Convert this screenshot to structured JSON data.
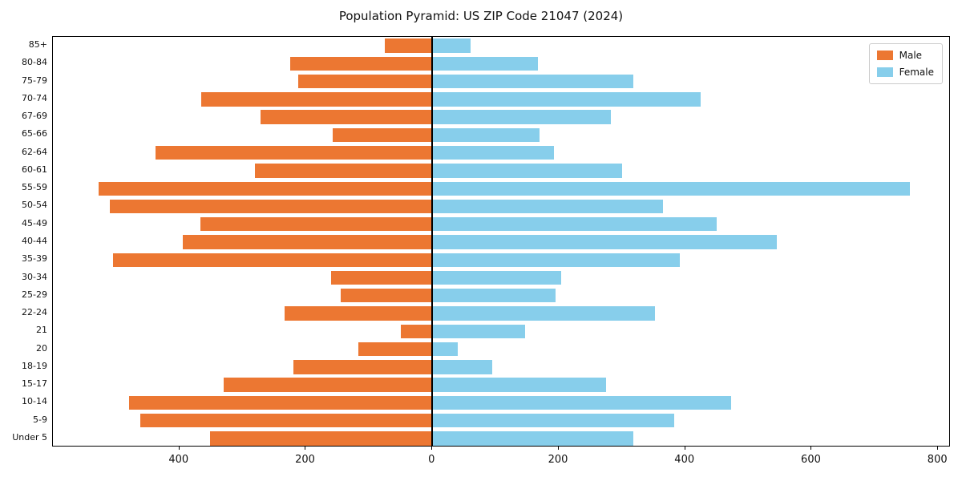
{
  "title": "Population Pyramid: US ZIP Code 21047 (2024)",
  "legend": {
    "male_label": "Male",
    "female_label": "Female"
  },
  "colors": {
    "male": "#ec7732",
    "female": "#87ceeb",
    "axis": "#000000",
    "background": "#ffffff"
  },
  "chart_data": {
    "type": "bar",
    "subtype": "population-pyramid",
    "orientation": "horizontal",
    "title": "Population Pyramid: US ZIP Code 21047 (2024)",
    "xlabel": "",
    "ylabel": "",
    "categories": [
      "85+",
      "80-84",
      "75-79",
      "70-74",
      "67-69",
      "65-66",
      "62-64",
      "60-61",
      "55-59",
      "50-54",
      "45-49",
      "40-44",
      "35-39",
      "30-34",
      "25-29",
      "22-24",
      "21",
      "20",
      "18-19",
      "15-17",
      "10-14",
      "5-9",
      "Under 5"
    ],
    "series": [
      {
        "name": "Male",
        "side": "left",
        "color": "#ec7732",
        "values": [
          75,
          225,
          212,
          365,
          272,
          157,
          438,
          280,
          528,
          510,
          367,
          394,
          505,
          160,
          145,
          233,
          50,
          117,
          220,
          330,
          480,
          462,
          352
        ]
      },
      {
        "name": "Female",
        "side": "right",
        "color": "#87ceeb",
        "values": [
          60,
          167,
          318,
          425,
          282,
          170,
          192,
          300,
          755,
          365,
          450,
          545,
          392,
          204,
          195,
          352,
          147,
          40,
          95,
          275,
          473,
          382,
          318
        ]
      }
    ],
    "x_ticks": [
      -400,
      -200,
      0,
      200,
      400,
      600,
      800
    ],
    "x_tick_labels": [
      "400",
      "200",
      "0",
      "200",
      "400",
      "600",
      "800"
    ],
    "xlim": [
      -600,
      820
    ],
    "grid": false,
    "legend_position": "upper right"
  }
}
